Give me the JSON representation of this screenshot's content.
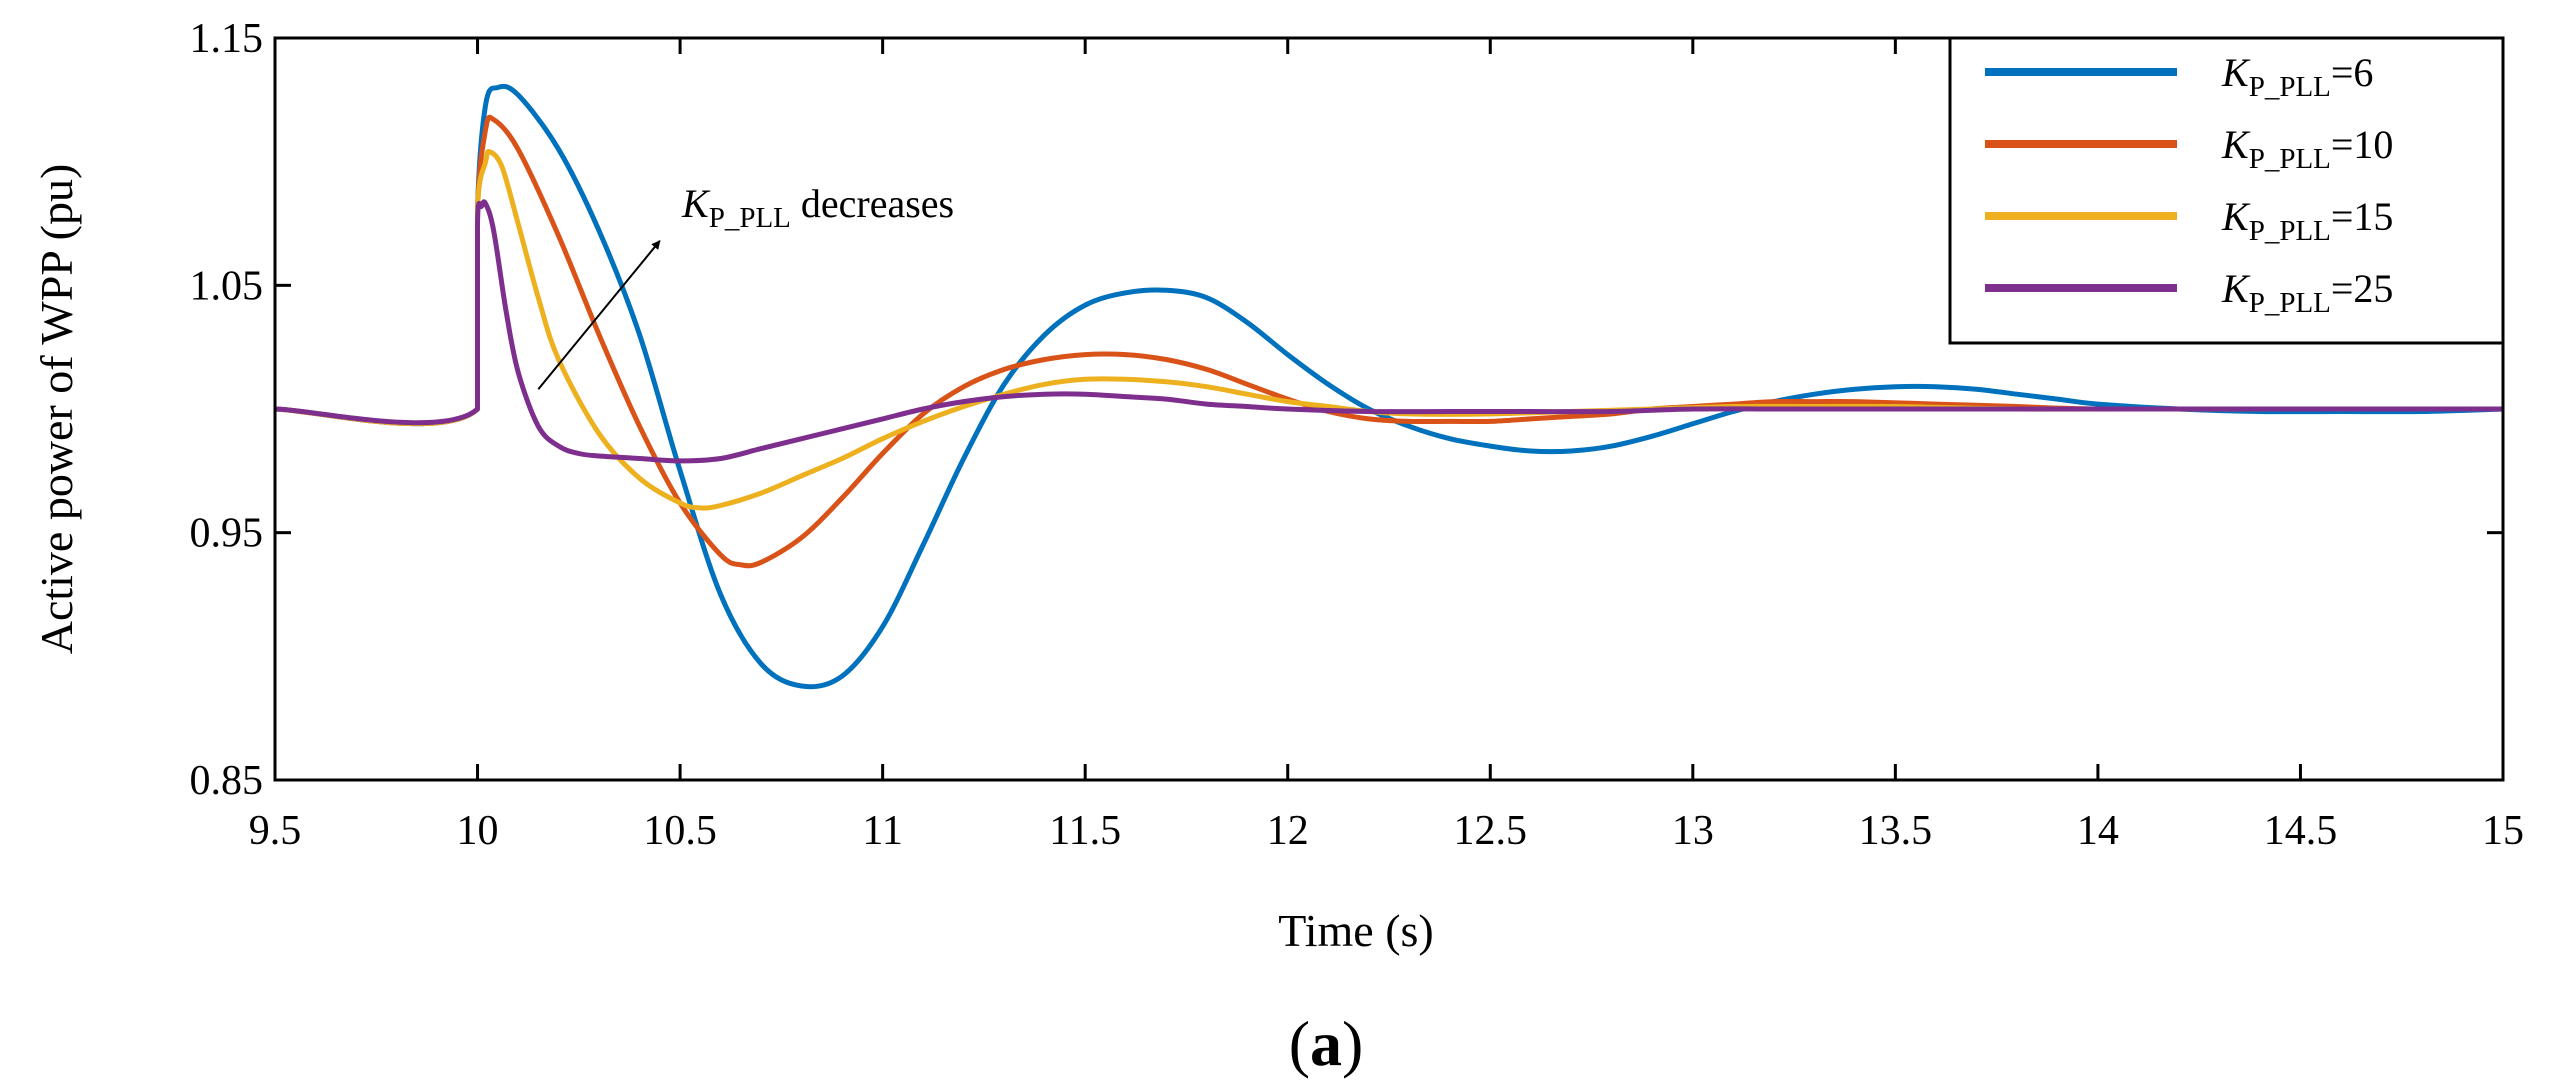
{
  "chart_data": {
    "type": "line",
    "title": "",
    "xlabel": "Time (s)",
    "ylabel": "Active power of WPP (pu)",
    "xlim": [
      9.5,
      15
    ],
    "ylim": [
      0.85,
      1.15
    ],
    "xticks": [
      9.5,
      10,
      10.5,
      11,
      11.5,
      12,
      12.5,
      13,
      13.5,
      14,
      14.5,
      15
    ],
    "xtick_labels": [
      "9.5",
      "10",
      "10.5",
      "11",
      "11.5",
      "12",
      "12.5",
      "13",
      "13.5",
      "14",
      "14.5",
      "15"
    ],
    "yticks": [
      0.85,
      0.95,
      1.05,
      1.15
    ],
    "ytick_labels": [
      "0.85",
      "0.95",
      "1.05",
      "1.15"
    ],
    "grid": false,
    "legend_position": "top-right",
    "panel_label": "a",
    "annotation": {
      "k_symbol": "K",
      "subscript": "P_PLL",
      "text": " decreases",
      "arrow_from": [
        10.15,
        1.008
      ],
      "arrow_to": [
        10.45,
        1.068
      ]
    },
    "series": [
      {
        "name": "KP_PLL=6",
        "legend_k": "K",
        "legend_sub": "P_PLL",
        "legend_rest": "=6",
        "color": "#0072BD",
        "x": [
          9.5,
          10.0,
          10.0,
          10.02,
          10.05,
          10.1,
          10.2,
          10.3,
          10.4,
          10.5,
          10.6,
          10.7,
          10.8,
          10.9,
          11.0,
          11.1,
          11.2,
          11.3,
          11.4,
          11.5,
          11.6,
          11.7,
          11.8,
          11.9,
          12.0,
          12.1,
          12.2,
          12.3,
          12.4,
          12.5,
          12.6,
          12.7,
          12.8,
          12.9,
          13.0,
          13.1,
          13.2,
          13.3,
          13.4,
          13.5,
          13.6,
          13.7,
          13.8,
          13.9,
          14.0,
          14.2,
          14.4,
          14.6,
          14.8,
          15.0
        ],
        "y": [
          1.0,
          1.0,
          1.08,
          1.123,
          1.13,
          1.127,
          1.105,
          1.072,
          1.03,
          0.975,
          0.925,
          0.897,
          0.888,
          0.892,
          0.912,
          0.945,
          0.98,
          1.01,
          1.03,
          1.042,
          1.047,
          1.048,
          1.045,
          1.035,
          1.022,
          1.01,
          1.0,
          0.993,
          0.988,
          0.985,
          0.983,
          0.983,
          0.985,
          0.989,
          0.994,
          0.999,
          1.003,
          1.006,
          1.008,
          1.009,
          1.009,
          1.008,
          1.006,
          1.004,
          1.002,
          1.0,
          0.999,
          0.999,
          0.999,
          1.0
        ]
      },
      {
        "name": "KP_PLL=10",
        "legend_k": "K",
        "legend_sub": "P_PLL",
        "legend_rest": "=10",
        "color": "#D95319",
        "x": [
          9.5,
          10.0,
          10.0,
          10.02,
          10.04,
          10.1,
          10.2,
          10.3,
          10.4,
          10.5,
          10.6,
          10.65,
          10.7,
          10.8,
          10.9,
          11.0,
          11.1,
          11.2,
          11.3,
          11.4,
          11.5,
          11.6,
          11.7,
          11.8,
          11.9,
          12.0,
          12.1,
          12.2,
          12.3,
          12.4,
          12.5,
          12.6,
          12.7,
          12.8,
          12.9,
          13.0,
          13.1,
          13.2,
          13.3,
          13.4,
          13.6,
          13.8,
          14.0,
          14.5,
          15.0
        ],
        "y": [
          1.0,
          1.0,
          1.08,
          1.113,
          1.117,
          1.105,
          1.07,
          1.03,
          0.993,
          0.962,
          0.941,
          0.937,
          0.938,
          0.948,
          0.964,
          0.982,
          0.998,
          1.009,
          1.016,
          1.02,
          1.022,
          1.022,
          1.02,
          1.016,
          1.01,
          1.004,
          0.999,
          0.996,
          0.995,
          0.995,
          0.995,
          0.996,
          0.997,
          0.998,
          1.0,
          1.001,
          1.002,
          1.003,
          1.003,
          1.003,
          1.002,
          1.001,
          1.0,
          1.0,
          1.0
        ]
      },
      {
        "name": "KP_PLL=15",
        "legend_k": "K",
        "legend_sub": "P_PLL",
        "legend_rest": "=15",
        "color": "#EDB120",
        "x": [
          9.5,
          10.0,
          10.0,
          10.02,
          10.03,
          10.06,
          10.1,
          10.15,
          10.2,
          10.3,
          10.4,
          10.5,
          10.55,
          10.6,
          10.7,
          10.8,
          10.9,
          11.0,
          11.1,
          11.2,
          11.3,
          11.4,
          11.5,
          11.6,
          11.7,
          11.8,
          11.9,
          12.0,
          12.1,
          12.2,
          12.3,
          12.5,
          12.7,
          12.9,
          13.1,
          13.3,
          13.5,
          13.8,
          14.2,
          15.0
        ],
        "y": [
          1.0,
          1.0,
          1.08,
          1.1,
          1.104,
          1.098,
          1.075,
          1.045,
          1.02,
          0.99,
          0.972,
          0.962,
          0.96,
          0.961,
          0.966,
          0.973,
          0.98,
          0.988,
          0.995,
          1.001,
          1.006,
          1.01,
          1.012,
          1.012,
          1.011,
          1.009,
          1.006,
          1.003,
          1.001,
          0.999,
          0.998,
          0.998,
          0.999,
          1.0,
          1.001,
          1.001,
          1.001,
          1.0,
          1.0,
          1.0
        ]
      },
      {
        "name": "KP_PLL=25",
        "legend_k": "K",
        "legend_sub": "P_PLL",
        "legend_rest": "=25",
        "color": "#7E2F8E",
        "x": [
          9.5,
          10.0,
          10.0,
          10.01,
          10.02,
          10.04,
          10.07,
          10.1,
          10.15,
          10.2,
          10.25,
          10.3,
          10.4,
          10.5,
          10.6,
          10.7,
          10.8,
          10.9,
          11.0,
          11.1,
          11.2,
          11.3,
          11.4,
          11.5,
          11.6,
          11.7,
          11.8,
          11.9,
          12.0,
          12.2,
          12.4,
          12.6,
          12.8,
          13.0,
          13.2,
          13.5,
          14.0,
          15.0
        ],
        "y": [
          1.0,
          1.0,
          1.075,
          1.082,
          1.083,
          1.072,
          1.04,
          1.015,
          0.993,
          0.985,
          0.982,
          0.981,
          0.98,
          0.979,
          0.98,
          0.984,
          0.988,
          0.992,
          0.996,
          1.0,
          1.003,
          1.005,
          1.006,
          1.006,
          1.005,
          1.004,
          1.002,
          1.001,
          1.0,
          0.999,
          0.999,
          0.999,
          0.999,
          1.0,
          1.0,
          1.0,
          1.0,
          1.0
        ]
      }
    ]
  }
}
